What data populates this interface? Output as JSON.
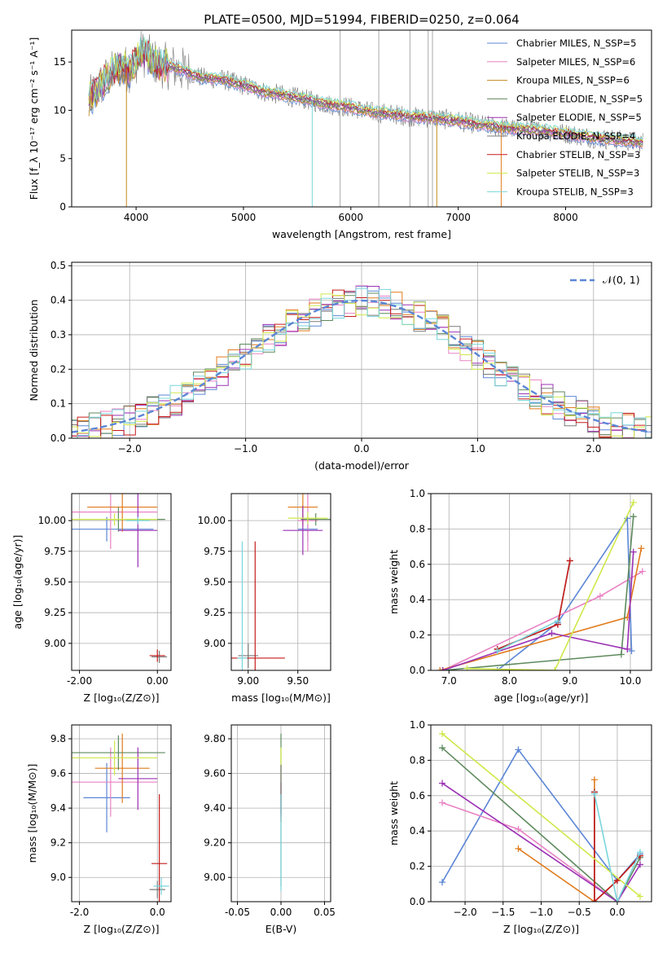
{
  "figure": {
    "title": "PLATE=0500, MJD=51994, FIBERID=0250, z=0.064"
  },
  "colors": {
    "series": [
      "#5b86d6",
      "#e882c4",
      "#e07b1c",
      "#5e8a5e",
      "#9b30b4",
      "#7a7a7a",
      "#c61b1b",
      "#cfe84a",
      "#78d6dc"
    ],
    "spectrum_lines": [
      "#5b86d6",
      "#e882c4",
      "#c28a1c",
      "#5e8a5e",
      "#9b30b4",
      "#7a7a7a",
      "#c61b1b",
      "#cfe84a",
      "#78d6dc"
    ],
    "normal_curve": "#5b86d6",
    "grid": "#b0b0b0",
    "data_spectrum": "#7a7a7a"
  },
  "chart_data": [
    {
      "id": "spectrum",
      "type": "line",
      "xlabel": "wavelength [Angstrom, rest frame]",
      "ylabel": "Flux [f_λ 10⁻¹⁷ erg cm⁻² s⁻¹ A⁻¹]",
      "xlim": [
        3400,
        8800
      ],
      "ylim": [
        0,
        18.3
      ],
      "xticks": [
        4000,
        5000,
        6000,
        7000,
        8000
      ],
      "yticks": [
        0,
        5,
        10,
        15
      ],
      "grid": false,
      "legend_position": "top-right",
      "legend": [
        "Chabrier MILES, N_SSP=5",
        "Salpeter MILES, N_SSP=6",
        "Kroupa MILES, N_SSP=6",
        "Chabrier ELODIE, N_SSP=5",
        "Salpeter ELODIE, N_SSP=5",
        "Kroupa ELODIE, N_SSP=4",
        "Chabrier STELIB, N_SSP=3",
        "Salpeter STELIB, N_SSP=3",
        "Kroupa STELIB, N_SSP=3"
      ],
      "continuum": {
        "x": [
          3560,
          3700,
          3850,
          3950,
          4050,
          4200,
          4400,
          4600,
          4800,
          5000,
          5200,
          5500,
          5800,
          6000,
          6200,
          6400,
          6600,
          6800,
          7000,
          7200,
          7500,
          7800,
          8000,
          8300,
          8500,
          8700
        ],
        "y": [
          11.0,
          13.0,
          14.5,
          14.2,
          16.0,
          14.8,
          14.3,
          13.4,
          13.2,
          12.6,
          11.9,
          11.3,
          10.6,
          10.3,
          9.8,
          9.6,
          9.3,
          9.2,
          8.9,
          8.5,
          8.1,
          7.9,
          7.6,
          7.1,
          6.9,
          6.7
        ]
      },
      "spikes": [
        {
          "x": 3910,
          "y": 0
        },
        {
          "x": 5640,
          "y": 0
        },
        {
          "x": 6800,
          "y": 0
        },
        {
          "x": 7400,
          "y": 0
        }
      ]
    },
    {
      "id": "residuals",
      "type": "line",
      "xlabel": "(data-model)/error",
      "ylabel": "Normed distribution",
      "xlim": [
        -2.5,
        2.5
      ],
      "ylim": [
        0,
        0.51
      ],
      "xticks": [
        -2,
        -1,
        0,
        1,
        2
      ],
      "yticks": [
        0.0,
        0.1,
        0.2,
        0.3,
        0.4,
        0.5
      ],
      "grid": true,
      "legend_position": "top-right",
      "legend": [
        "𝒩(0, 1)"
      ],
      "bin_width": 0.1,
      "normal_curve": {
        "mean": 0,
        "std": 1
      }
    },
    {
      "id": "age_vs_Z",
      "type": "scatter",
      "xlabel": "Z [log₁₀(Z/Z⊙)]",
      "ylabel": "age  [log₁₀(age/yr)]",
      "xlim": [
        -2.2,
        0.35
      ],
      "ylim": [
        8.78,
        10.22
      ],
      "xticks": [
        -2,
        0
      ],
      "yticks": [
        9.0,
        9.25,
        9.5,
        9.75,
        10.0
      ],
      "grid": true,
      "points": [
        {
          "series": 0,
          "x": -1.3,
          "y": 9.93,
          "xerr": 1.2,
          "yerr": 0.1
        },
        {
          "series": 1,
          "x": -1.2,
          "y": 10.07,
          "xerr": 1.2,
          "yerr": 0.3
        },
        {
          "series": 2,
          "x": -0.9,
          "y": 10.11,
          "xerr": 0.9,
          "yerr": 0.2
        },
        {
          "series": 3,
          "x": -1.0,
          "y": 10.01,
          "xerr": 1.2,
          "yerr": 0.1
        },
        {
          "series": 4,
          "x": -0.5,
          "y": 9.92,
          "xerr": 0.5,
          "yerr": 0.3
        },
        {
          "series": 5,
          "x": 0.05,
          "y": 8.89,
          "xerr": 0.2,
          "yerr": 0.05
        },
        {
          "series": 6,
          "x": 0.0,
          "y": 8.9,
          "xerr": 0.2,
          "yerr": 0.05
        },
        {
          "series": 7,
          "x": -1.1,
          "y": 10.01,
          "xerr": 1.1,
          "yerr": 0.05
        },
        {
          "series": 8,
          "x": -0.5,
          "y": 10.0,
          "xerr": 0.3,
          "yerr": 0.03
        }
      ]
    },
    {
      "id": "age_vs_mass",
      "type": "scatter",
      "xlabel": "mass [log₁₀(M/M⊙)]",
      "ylabel": "",
      "xlim": [
        8.83,
        9.83
      ],
      "ylim": [
        8.78,
        10.22
      ],
      "xticks": [
        9.0,
        9.5
      ],
      "yticks": [
        9.0,
        9.25,
        9.5,
        9.75,
        10.0
      ],
      "grid": true,
      "points": [
        {
          "series": 0,
          "x": 9.6,
          "y": 9.93,
          "xerr": 0.1,
          "yerr": 0.1
        },
        {
          "series": 1,
          "x": 9.6,
          "y": 10.0,
          "xerr": 0.1,
          "yerr": 0.25
        },
        {
          "series": 2,
          "x": 9.55,
          "y": 10.11,
          "xerr": 0.15,
          "yerr": 0.15
        },
        {
          "series": 3,
          "x": 9.68,
          "y": 10.01,
          "xerr": 0.15,
          "yerr": 0.05
        },
        {
          "series": 4,
          "x": 9.55,
          "y": 9.92,
          "xerr": 0.2,
          "yerr": 0.2
        },
        {
          "series": 5,
          "x": 9.0,
          "y": 8.9,
          "xerr": 0.1,
          "yerr": 0.1
        },
        {
          "series": 6,
          "x": 9.07,
          "y": 8.88,
          "xerr": 0.3,
          "yerr": 0.95
        },
        {
          "series": 7,
          "x": 9.6,
          "y": 10.02,
          "xerr": 0.2,
          "yerr": 0.05
        },
        {
          "series": 8,
          "x": 8.94,
          "y": 8.88,
          "xerr": 0.05,
          "yerr": 0.95
        }
      ]
    },
    {
      "id": "massweight_vs_age",
      "type": "line",
      "xlabel": "age  [log₁₀(age/yr)]",
      "ylabel": "mass weight",
      "xlim": [
        6.7,
        10.35
      ],
      "ylim": [
        0,
        1
      ],
      "xticks": [
        7,
        8,
        9,
        10
      ],
      "yticks": [
        0.0,
        0.2,
        0.4,
        0.6,
        0.8,
        1.0
      ],
      "grid": true,
      "series": [
        {
          "x": [
            7.8,
            8.8,
            9.95,
            10.02
          ],
          "y": [
            0.0,
            0.27,
            0.86,
            0.11
          ]
        },
        {
          "x": [
            6.9,
            9.5,
            10.2
          ],
          "y": [
            0.0,
            0.42,
            0.56
          ]
        },
        {
          "x": [
            6.85,
            9.95,
            10.18
          ],
          "y": [
            0.0,
            0.3,
            0.69
          ]
        },
        {
          "x": [
            6.9,
            9.85,
            10.05
          ],
          "y": [
            0.0,
            0.09,
            0.87
          ]
        },
        {
          "x": [
            6.9,
            8.7,
            9.95,
            10.05
          ],
          "y": [
            0.0,
            0.21,
            0.12,
            0.67
          ]
        },
        {
          "x": [
            7.8,
            8.8,
            9.0
          ],
          "y": [
            0.12,
            0.26,
            0.62
          ]
        },
        {
          "x": [
            7.8,
            8.8,
            9.0
          ],
          "y": [
            0.12,
            0.26,
            0.62
          ]
        },
        {
          "x": [
            7.3,
            8.75,
            10.05
          ],
          "y": [
            0.01,
            0.0,
            0.95
          ]
        },
        {
          "x": [
            7.8,
            8.8
          ],
          "y": [
            0.11,
            0.28
          ]
        }
      ]
    },
    {
      "id": "mass_vs_Z",
      "type": "scatter",
      "xlabel": "Z [log₁₀(Z/Z⊙)]",
      "ylabel": "mass [log₁₀(M/M⊙)]",
      "xlim": [
        -2.2,
        0.35
      ],
      "ylim": [
        8.86,
        9.88
      ],
      "xticks": [
        -2,
        0
      ],
      "yticks": [
        9.0,
        9.2,
        9.4,
        9.6,
        9.8
      ],
      "grid": true,
      "points": [
        {
          "series": 0,
          "x": -1.3,
          "y": 9.46,
          "xerr": 0.6,
          "yerr": 0.2
        },
        {
          "series": 1,
          "x": -1.2,
          "y": 9.55,
          "xerr": 1.2,
          "yerr": 0.2
        },
        {
          "series": 2,
          "x": -0.9,
          "y": 9.63,
          "xerr": 0.7,
          "yerr": 0.2
        },
        {
          "series": 3,
          "x": -1.0,
          "y": 9.72,
          "xerr": 1.2,
          "yerr": 0.1
        },
        {
          "series": 4,
          "x": -0.5,
          "y": 9.57,
          "xerr": 0.5,
          "yerr": 0.18
        },
        {
          "series": 5,
          "x": 0.0,
          "y": 8.93,
          "xerr": 0.2,
          "yerr": 0.05
        },
        {
          "series": 6,
          "x": 0.05,
          "y": 9.08,
          "xerr": 0.2,
          "yerr": 0.4
        },
        {
          "series": 7,
          "x": -1.1,
          "y": 9.69,
          "xerr": 1.1,
          "yerr": 0.1
        },
        {
          "series": 8,
          "x": 0.1,
          "y": 8.95,
          "xerr": 0.2,
          "yerr": 0.05
        }
      ]
    },
    {
      "id": "mass_vs_ebv",
      "type": "scatter",
      "xlabel": "E(B-V)",
      "ylabel": "",
      "xlim": [
        -0.057,
        0.057
      ],
      "ylim": [
        8.86,
        9.88
      ],
      "xticks": [
        -0.05,
        0.0,
        0.05
      ],
      "yticks": [
        9.0,
        9.2,
        9.4,
        9.6,
        9.8
      ],
      "grid": true,
      "points": [
        {
          "series": 3,
          "x": 0.0,
          "y": 9.6,
          "xerr": 0,
          "yerr": 0.23
        },
        {
          "series": 7,
          "x": 0.0,
          "y": 9.6,
          "xerr": 0,
          "yerr": 0.15
        },
        {
          "series": 4,
          "x": 0.0,
          "y": 9.45,
          "xerr": 0,
          "yerr": 0.1
        },
        {
          "series": 6,
          "x": 0.0,
          "y": 9.4,
          "xerr": 0,
          "yerr": 0.08
        },
        {
          "series": 5,
          "x": 0.0,
          "y": 9.3,
          "xerr": 0,
          "yerr": 0.35
        },
        {
          "series": 8,
          "x": 0.0,
          "y": 9.2,
          "xerr": 0,
          "yerr": 0.28
        }
      ]
    },
    {
      "id": "massweight_vs_Z",
      "type": "line",
      "xlabel": "Z [log₁₀(Z/Z⊙)]",
      "ylabel": "mass weight",
      "xlim": [
        -2.45,
        0.45
      ],
      "ylim": [
        0,
        1
      ],
      "xticks": [
        -2.0,
        -1.5,
        -1.0,
        -0.5,
        0.0
      ],
      "yticks": [
        0.0,
        0.2,
        0.4,
        0.6,
        0.8,
        1.0
      ],
      "grid": true,
      "series": [
        {
          "x": [
            -2.3,
            -1.3,
            0.0,
            0.3
          ],
          "y": [
            0.11,
            0.86,
            0.12,
            0.27
          ]
        },
        {
          "x": [
            -2.3,
            -1.3,
            0.0
          ],
          "y": [
            0.56,
            0.41,
            0.0
          ]
        },
        {
          "x": [
            -1.3,
            -0.3,
            -0.3
          ],
          "y": [
            0.3,
            0.0,
            0.69
          ]
        },
        {
          "x": [
            -2.3,
            0.0,
            0.3
          ],
          "y": [
            0.87,
            0.0,
            0.25
          ]
        },
        {
          "x": [
            -2.3,
            0.0,
            0.3
          ],
          "y": [
            0.67,
            0.0,
            0.21
          ]
        },
        {
          "x": [
            -0.3,
            -0.3,
            0.0,
            0.3
          ],
          "y": [
            0.62,
            0.0,
            0.12,
            0.26
          ]
        },
        {
          "x": [
            -0.3,
            -0.3,
            0.0,
            0.3
          ],
          "y": [
            0.62,
            0.0,
            0.12,
            0.26
          ]
        },
        {
          "x": [
            -2.3,
            0.3
          ],
          "y": [
            0.95,
            0.03
          ]
        },
        {
          "x": [
            -0.3,
            0.0,
            0.3
          ],
          "y": [
            0.61,
            0.0,
            0.28
          ]
        }
      ]
    }
  ]
}
